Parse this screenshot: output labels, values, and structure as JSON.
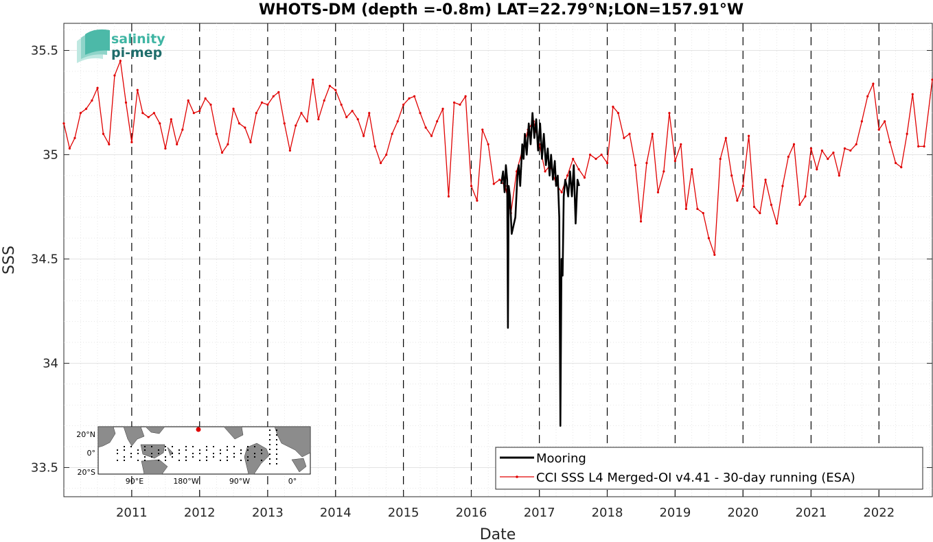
{
  "logo": {
    "line1": "salinity",
    "line2": "pi-mep"
  },
  "chart_data": {
    "type": "line",
    "title": "WHOTS-DM (depth =-0.8m) LAT=22.79°N;LON=157.91°W",
    "xlabel": "Date",
    "ylabel": "SSS",
    "xlim": [
      "2010-01-01",
      "2022-10-15"
    ],
    "ylim": [
      33.36,
      35.63
    ],
    "x_ticks": [
      "2011",
      "2012",
      "2013",
      "2014",
      "2015",
      "2016",
      "2017",
      "2018",
      "2019",
      "2020",
      "2021",
      "2022"
    ],
    "y_ticks": [
      {
        "value": 33.5,
        "label": "33.5"
      },
      {
        "value": 34,
        "label": "34"
      },
      {
        "value": 34.5,
        "label": "34.5"
      },
      {
        "value": 35,
        "label": "35"
      },
      {
        "value": 35.5,
        "label": "35.5"
      }
    ],
    "grid": true,
    "year_boundaries": "dashed vertical lines at each January 1",
    "legend_position": "bottom-right",
    "colors": {
      "cci": "#e00000",
      "mooring": "#000000"
    },
    "series": [
      {
        "name": "Mooring",
        "color": "#000000",
        "style": "thick-line",
        "points": [
          [
            "2016-06-10",
            34.86
          ],
          [
            "2016-06-20",
            34.92
          ],
          [
            "2016-06-28",
            34.82
          ],
          [
            "2016-07-05",
            34.95
          ],
          [
            "2016-07-12",
            34.88
          ],
          [
            "2016-07-16",
            34.17
          ],
          [
            "2016-07-20",
            34.85
          ],
          [
            "2016-07-27",
            34.8
          ],
          [
            "2016-08-05",
            34.62
          ],
          [
            "2016-08-15",
            34.66
          ],
          [
            "2016-08-25",
            34.7
          ],
          [
            "2016-09-05",
            34.9
          ],
          [
            "2016-09-12",
            34.95
          ],
          [
            "2016-09-20",
            34.85
          ],
          [
            "2016-10-01",
            35.05
          ],
          [
            "2016-10-08",
            34.98
          ],
          [
            "2016-10-15",
            35.1
          ],
          [
            "2016-10-25",
            35.0
          ],
          [
            "2016-11-05",
            35.15
          ],
          [
            "2016-11-15",
            35.05
          ],
          [
            "2016-11-25",
            35.2
          ],
          [
            "2016-12-05",
            35.08
          ],
          [
            "2016-12-15",
            35.17
          ],
          [
            "2016-12-25",
            35.02
          ],
          [
            "2017-01-05",
            35.15
          ],
          [
            "2017-01-15",
            34.98
          ],
          [
            "2017-01-25",
            35.1
          ],
          [
            "2017-02-05",
            34.95
          ],
          [
            "2017-02-15",
            35.03
          ],
          [
            "2017-02-25",
            34.9
          ],
          [
            "2017-03-05",
            35.0
          ],
          [
            "2017-03-15",
            34.88
          ],
          [
            "2017-03-25",
            34.97
          ],
          [
            "2017-04-01",
            34.85
          ],
          [
            "2017-04-10",
            34.9
          ],
          [
            "2017-04-18",
            34.7
          ],
          [
            "2017-04-24",
            33.7
          ],
          [
            "2017-04-30",
            34.5
          ],
          [
            "2017-05-06",
            34.42
          ],
          [
            "2017-05-12",
            34.8
          ],
          [
            "2017-05-20",
            34.88
          ],
          [
            "2017-05-28",
            34.85
          ],
          [
            "2017-06-05",
            34.8
          ],
          [
            "2017-06-15",
            34.92
          ],
          [
            "2017-06-25",
            34.8
          ],
          [
            "2017-07-05",
            34.95
          ],
          [
            "2017-07-15",
            34.67
          ],
          [
            "2017-07-25",
            34.88
          ],
          [
            "2017-08-03",
            34.85
          ]
        ]
      },
      {
        "name": "CCI SSS L4 Merged-OI v4.41 - 30-day running (ESA)",
        "color": "#e00000",
        "style": "line-with-dots",
        "points": [
          [
            "2010-01-01",
            35.15
          ],
          [
            "2010-02-01",
            35.03
          ],
          [
            "2010-03-01",
            35.08
          ],
          [
            "2010-04-01",
            35.2
          ],
          [
            "2010-05-01",
            35.22
          ],
          [
            "2010-06-01",
            35.26
          ],
          [
            "2010-07-01",
            35.32
          ],
          [
            "2010-08-01",
            35.1
          ],
          [
            "2010-09-01",
            35.05
          ],
          [
            "2010-10-01",
            35.38
          ],
          [
            "2010-11-01",
            35.45
          ],
          [
            "2010-12-01",
            35.25
          ],
          [
            "2011-01-01",
            35.06
          ],
          [
            "2011-02-01",
            35.31
          ],
          [
            "2011-03-01",
            35.2
          ],
          [
            "2011-04-01",
            35.18
          ],
          [
            "2011-05-01",
            35.2
          ],
          [
            "2011-06-01",
            35.15
          ],
          [
            "2011-07-01",
            35.03
          ],
          [
            "2011-08-01",
            35.17
          ],
          [
            "2011-09-01",
            35.05
          ],
          [
            "2011-10-01",
            35.12
          ],
          [
            "2011-11-01",
            35.26
          ],
          [
            "2011-12-01",
            35.2
          ],
          [
            "2012-01-01",
            35.21
          ],
          [
            "2012-02-01",
            35.27
          ],
          [
            "2012-03-01",
            35.24
          ],
          [
            "2012-04-01",
            35.1
          ],
          [
            "2012-05-01",
            35.01
          ],
          [
            "2012-06-01",
            35.05
          ],
          [
            "2012-07-01",
            35.22
          ],
          [
            "2012-08-01",
            35.15
          ],
          [
            "2012-09-01",
            35.13
          ],
          [
            "2012-10-01",
            35.06
          ],
          [
            "2012-11-01",
            35.2
          ],
          [
            "2012-12-01",
            35.25
          ],
          [
            "2013-01-01",
            35.24
          ],
          [
            "2013-02-01",
            35.28
          ],
          [
            "2013-03-01",
            35.3
          ],
          [
            "2013-04-01",
            35.15
          ],
          [
            "2013-05-01",
            35.02
          ],
          [
            "2013-06-01",
            35.14
          ],
          [
            "2013-07-01",
            35.2
          ],
          [
            "2013-08-01",
            35.16
          ],
          [
            "2013-09-01",
            35.36
          ],
          [
            "2013-10-01",
            35.17
          ],
          [
            "2013-11-01",
            35.26
          ],
          [
            "2013-12-01",
            35.33
          ],
          [
            "2014-01-01",
            35.31
          ],
          [
            "2014-02-01",
            35.24
          ],
          [
            "2014-03-01",
            35.18
          ],
          [
            "2014-04-01",
            35.21
          ],
          [
            "2014-05-01",
            35.17
          ],
          [
            "2014-06-01",
            35.09
          ],
          [
            "2014-07-01",
            35.2
          ],
          [
            "2014-08-01",
            35.04
          ],
          [
            "2014-09-01",
            34.96
          ],
          [
            "2014-10-01",
            35.0
          ],
          [
            "2014-11-01",
            35.1
          ],
          [
            "2014-12-01",
            35.16
          ],
          [
            "2015-01-01",
            35.24
          ],
          [
            "2015-02-01",
            35.27
          ],
          [
            "2015-03-01",
            35.28
          ],
          [
            "2015-04-01",
            35.2
          ],
          [
            "2015-05-01",
            35.13
          ],
          [
            "2015-06-01",
            35.09
          ],
          [
            "2015-07-01",
            35.16
          ],
          [
            "2015-08-01",
            35.22
          ],
          [
            "2015-09-01",
            34.8
          ],
          [
            "2015-10-01",
            35.25
          ],
          [
            "2015-11-01",
            35.24
          ],
          [
            "2015-12-01",
            35.28
          ],
          [
            "2016-01-01",
            34.85
          ],
          [
            "2016-02-01",
            34.78
          ],
          [
            "2016-03-01",
            35.12
          ],
          [
            "2016-04-01",
            35.05
          ],
          [
            "2016-05-01",
            34.86
          ],
          [
            "2016-06-01",
            34.88
          ],
          [
            "2016-07-01",
            34.85
          ],
          [
            "2016-08-01",
            34.72
          ],
          [
            "2016-09-01",
            34.92
          ],
          [
            "2016-10-01",
            35.02
          ],
          [
            "2016-11-01",
            35.12
          ],
          [
            "2016-12-01",
            35.16
          ],
          [
            "2017-01-01",
            35.05
          ],
          [
            "2017-02-01",
            34.92
          ],
          [
            "2017-03-01",
            34.95
          ],
          [
            "2017-04-01",
            34.86
          ],
          [
            "2017-05-01",
            34.82
          ],
          [
            "2017-06-01",
            34.9
          ],
          [
            "2017-07-01",
            34.98
          ],
          [
            "2017-08-01",
            34.93
          ],
          [
            "2017-09-01",
            34.89
          ],
          [
            "2017-10-01",
            35.0
          ],
          [
            "2017-11-01",
            34.98
          ],
          [
            "2017-12-01",
            35.0
          ],
          [
            "2018-01-01",
            34.96
          ],
          [
            "2018-02-01",
            35.23
          ],
          [
            "2018-03-01",
            35.2
          ],
          [
            "2018-04-01",
            35.08
          ],
          [
            "2018-05-01",
            35.1
          ],
          [
            "2018-06-01",
            34.95
          ],
          [
            "2018-07-01",
            34.68
          ],
          [
            "2018-08-01",
            34.96
          ],
          [
            "2018-09-01",
            35.1
          ],
          [
            "2018-10-01",
            34.82
          ],
          [
            "2018-11-01",
            34.92
          ],
          [
            "2018-12-01",
            35.2
          ],
          [
            "2019-01-01",
            34.97
          ],
          [
            "2019-02-01",
            35.05
          ],
          [
            "2019-03-01",
            34.74
          ],
          [
            "2019-04-01",
            34.93
          ],
          [
            "2019-05-01",
            34.74
          ],
          [
            "2019-06-01",
            34.72
          ],
          [
            "2019-07-01",
            34.6
          ],
          [
            "2019-08-01",
            34.52
          ],
          [
            "2019-09-01",
            34.98
          ],
          [
            "2019-10-01",
            35.08
          ],
          [
            "2019-11-01",
            34.9
          ],
          [
            "2019-12-01",
            34.78
          ],
          [
            "2020-01-01",
            34.85
          ],
          [
            "2020-02-01",
            35.09
          ],
          [
            "2020-03-01",
            34.75
          ],
          [
            "2020-04-01",
            34.72
          ],
          [
            "2020-05-01",
            34.88
          ],
          [
            "2020-06-01",
            34.76
          ],
          [
            "2020-07-01",
            34.67
          ],
          [
            "2020-08-01",
            34.85
          ],
          [
            "2020-09-01",
            34.99
          ],
          [
            "2020-10-01",
            35.05
          ],
          [
            "2020-11-01",
            34.76
          ],
          [
            "2020-12-01",
            34.8
          ],
          [
            "2021-01-01",
            35.03
          ],
          [
            "2021-02-01",
            34.93
          ],
          [
            "2021-03-01",
            35.02
          ],
          [
            "2021-04-01",
            34.98
          ],
          [
            "2021-05-01",
            35.01
          ],
          [
            "2021-06-01",
            34.9
          ],
          [
            "2021-07-01",
            35.03
          ],
          [
            "2021-08-01",
            35.02
          ],
          [
            "2021-09-01",
            35.05
          ],
          [
            "2021-10-01",
            35.16
          ],
          [
            "2021-11-01",
            35.28
          ],
          [
            "2021-12-01",
            35.34
          ],
          [
            "2022-01-01",
            35.12
          ],
          [
            "2022-02-01",
            35.16
          ],
          [
            "2022-03-01",
            35.06
          ],
          [
            "2022-04-01",
            34.96
          ],
          [
            "2022-05-01",
            34.94
          ],
          [
            "2022-06-01",
            35.1
          ],
          [
            "2022-07-01",
            35.29
          ],
          [
            "2022-08-01",
            35.04
          ],
          [
            "2022-09-01",
            35.04
          ],
          [
            "2022-10-15",
            35.36
          ]
        ]
      }
    ],
    "inset_map": {
      "lat_labels": [
        "20°N",
        "0°",
        "20°S"
      ],
      "lon_labels": [
        "90°E",
        "180°W",
        "90°W",
        "0°"
      ],
      "marker": {
        "lat": 22.79,
        "lon": -157.91,
        "color": "#e00000"
      }
    }
  }
}
